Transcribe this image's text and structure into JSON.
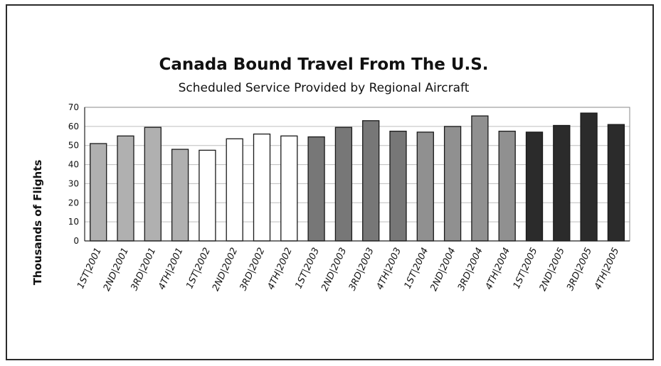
{
  "chart_data": {
    "type": "bar",
    "title": "Canada Bound Travel From The U.S.",
    "subtitle": "Scheduled Service Provided by Regional Aircraft",
    "xlabel": "",
    "ylabel": "Thousands of Flights",
    "ylim": [
      0,
      70
    ],
    "yticks": [
      0,
      10,
      20,
      30,
      40,
      50,
      60,
      70
    ],
    "grid": true,
    "legend": "none",
    "categories": [
      "1ST|2001",
      "2ND|2001",
      "3RD|2001",
      "4TH|2001",
      "1ST|2002",
      "2ND|2002",
      "3RD|2002",
      "4TH|2002",
      "1ST|2003",
      "2ND|2003",
      "3RD|2003",
      "4TH|2003",
      "1ST|2004",
      "2ND|2004",
      "3RD|2004",
      "4TH|2004",
      "1ST|2005",
      "2ND|2005",
      "3RD|2005",
      "4TH|2005"
    ],
    "values": [
      51,
      55,
      59.5,
      48,
      47.5,
      53.5,
      56,
      55,
      54.5,
      59.5,
      63,
      57.5,
      57,
      60,
      65.5,
      57.5,
      57,
      60.5,
      67,
      61
    ],
    "bar_colors": [
      "#b0b0b0",
      "#b0b0b0",
      "#b0b0b0",
      "#b0b0b0",
      "#ffffff",
      "#ffffff",
      "#ffffff",
      "#ffffff",
      "#777777",
      "#777777",
      "#777777",
      "#777777",
      "#909090",
      "#909090",
      "#909090",
      "#909090",
      "#2b2b2b",
      "#2b2b2b",
      "#2b2b2b",
      "#2b2b2b"
    ]
  }
}
